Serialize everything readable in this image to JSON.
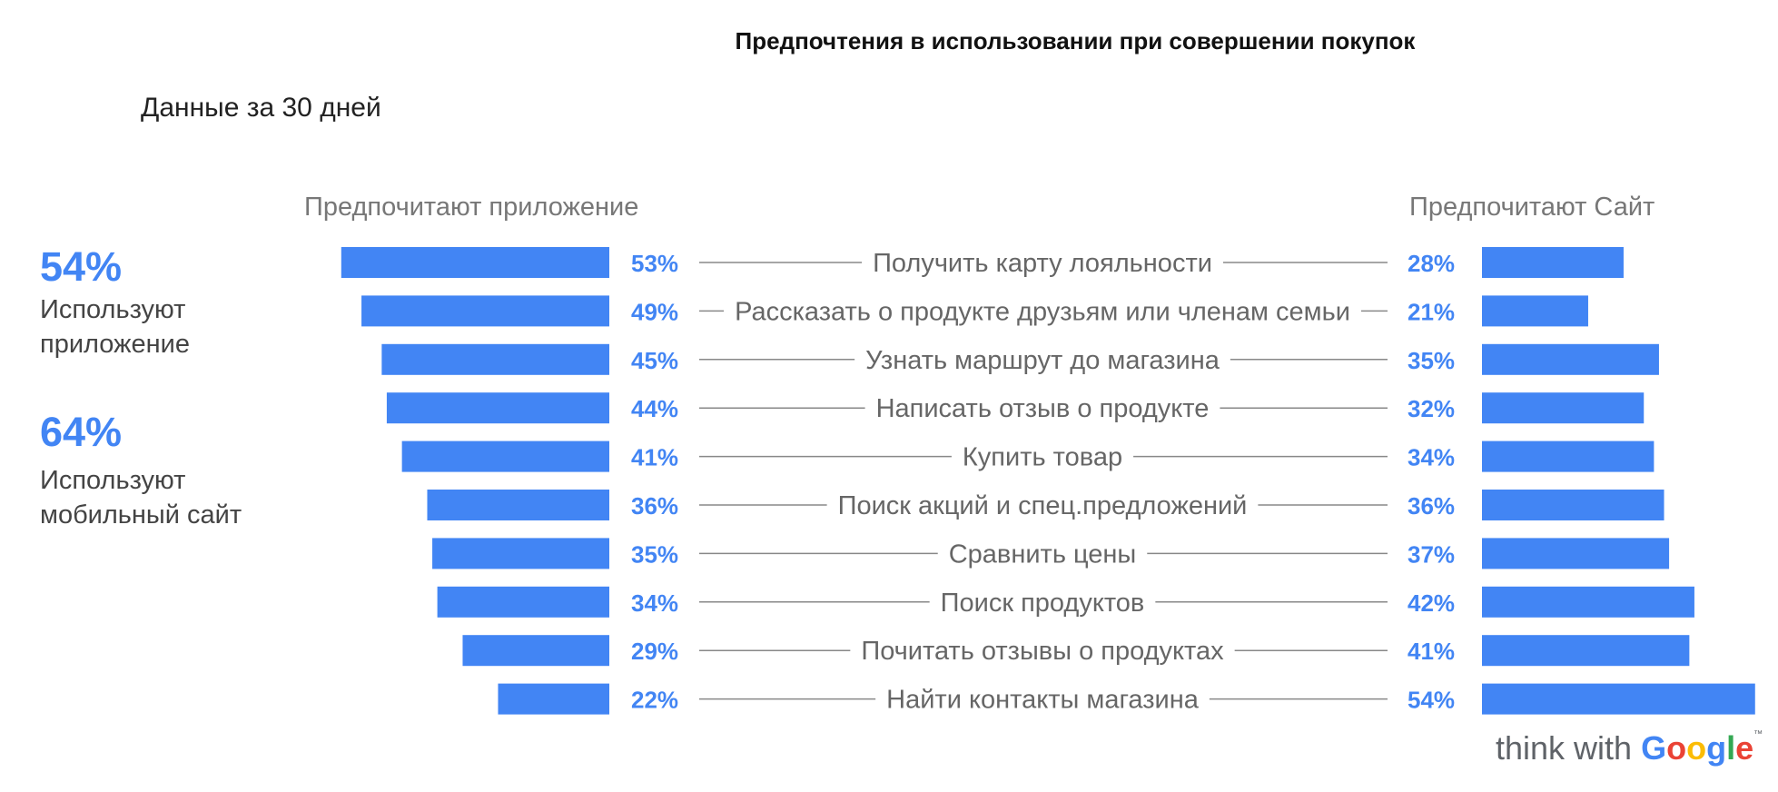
{
  "title": "Предпочтения в использовании при совершении покупок",
  "subtitle": "Данные за 30 дней",
  "stats": [
    {
      "pct": "54%",
      "label_line1": "Используют",
      "label_line2": "приложение"
    },
    {
      "pct": "64%",
      "label_line1": "Используют",
      "label_line2": "мобильный сайт"
    }
  ],
  "left_header": "Предпочитают приложение",
  "right_header": "Предпочитают Сайт",
  "colors": {
    "bar": "#4285f4",
    "value_text": "#4285f4",
    "category_text": "#666666",
    "connector": "#888888"
  },
  "logo": {
    "think_with": "think with",
    "google": [
      "G",
      "o",
      "o",
      "g",
      "l",
      "e"
    ],
    "google_colors": [
      "#4285f4",
      "#ea4335",
      "#fbbc05",
      "#4285f4",
      "#34a853",
      "#ea4335"
    ],
    "trademark": "™"
  },
  "chart_data": {
    "type": "bar",
    "orientation": "horizontal",
    "categories": [
      "Получить карту лояльности",
      "Рассказать о продукте друзьям или членам семьи",
      "Узнать маршрут до магазина",
      "Написать отзыв о продукте",
      "Купить товар",
      "Поиск акций и спец.предложений",
      "Сравнить цены",
      "Поиск продуктов",
      "Почитать отзывы о продуктах",
      "Найти контакты магазина"
    ],
    "series": [
      {
        "name": "Предпочитают приложение",
        "values": [
          53,
          49,
          45,
          44,
          41,
          36,
          35,
          34,
          29,
          22
        ]
      },
      {
        "name": "Предпочитают Сайт",
        "values": [
          28,
          21,
          35,
          32,
          34,
          36,
          37,
          42,
          41,
          54
        ]
      }
    ],
    "value_labels_left": [
      "53%",
      "49%",
      "45%",
      "44%",
      "41%",
      "36%",
      "35%",
      "34%",
      "29%",
      "22%"
    ],
    "value_labels_right": [
      "28%",
      "21%",
      "35%",
      "32%",
      "34%",
      "36%",
      "37%",
      "42%",
      "41%",
      "54%"
    ],
    "xlim": [
      0,
      54
    ],
    "grid": false
  }
}
